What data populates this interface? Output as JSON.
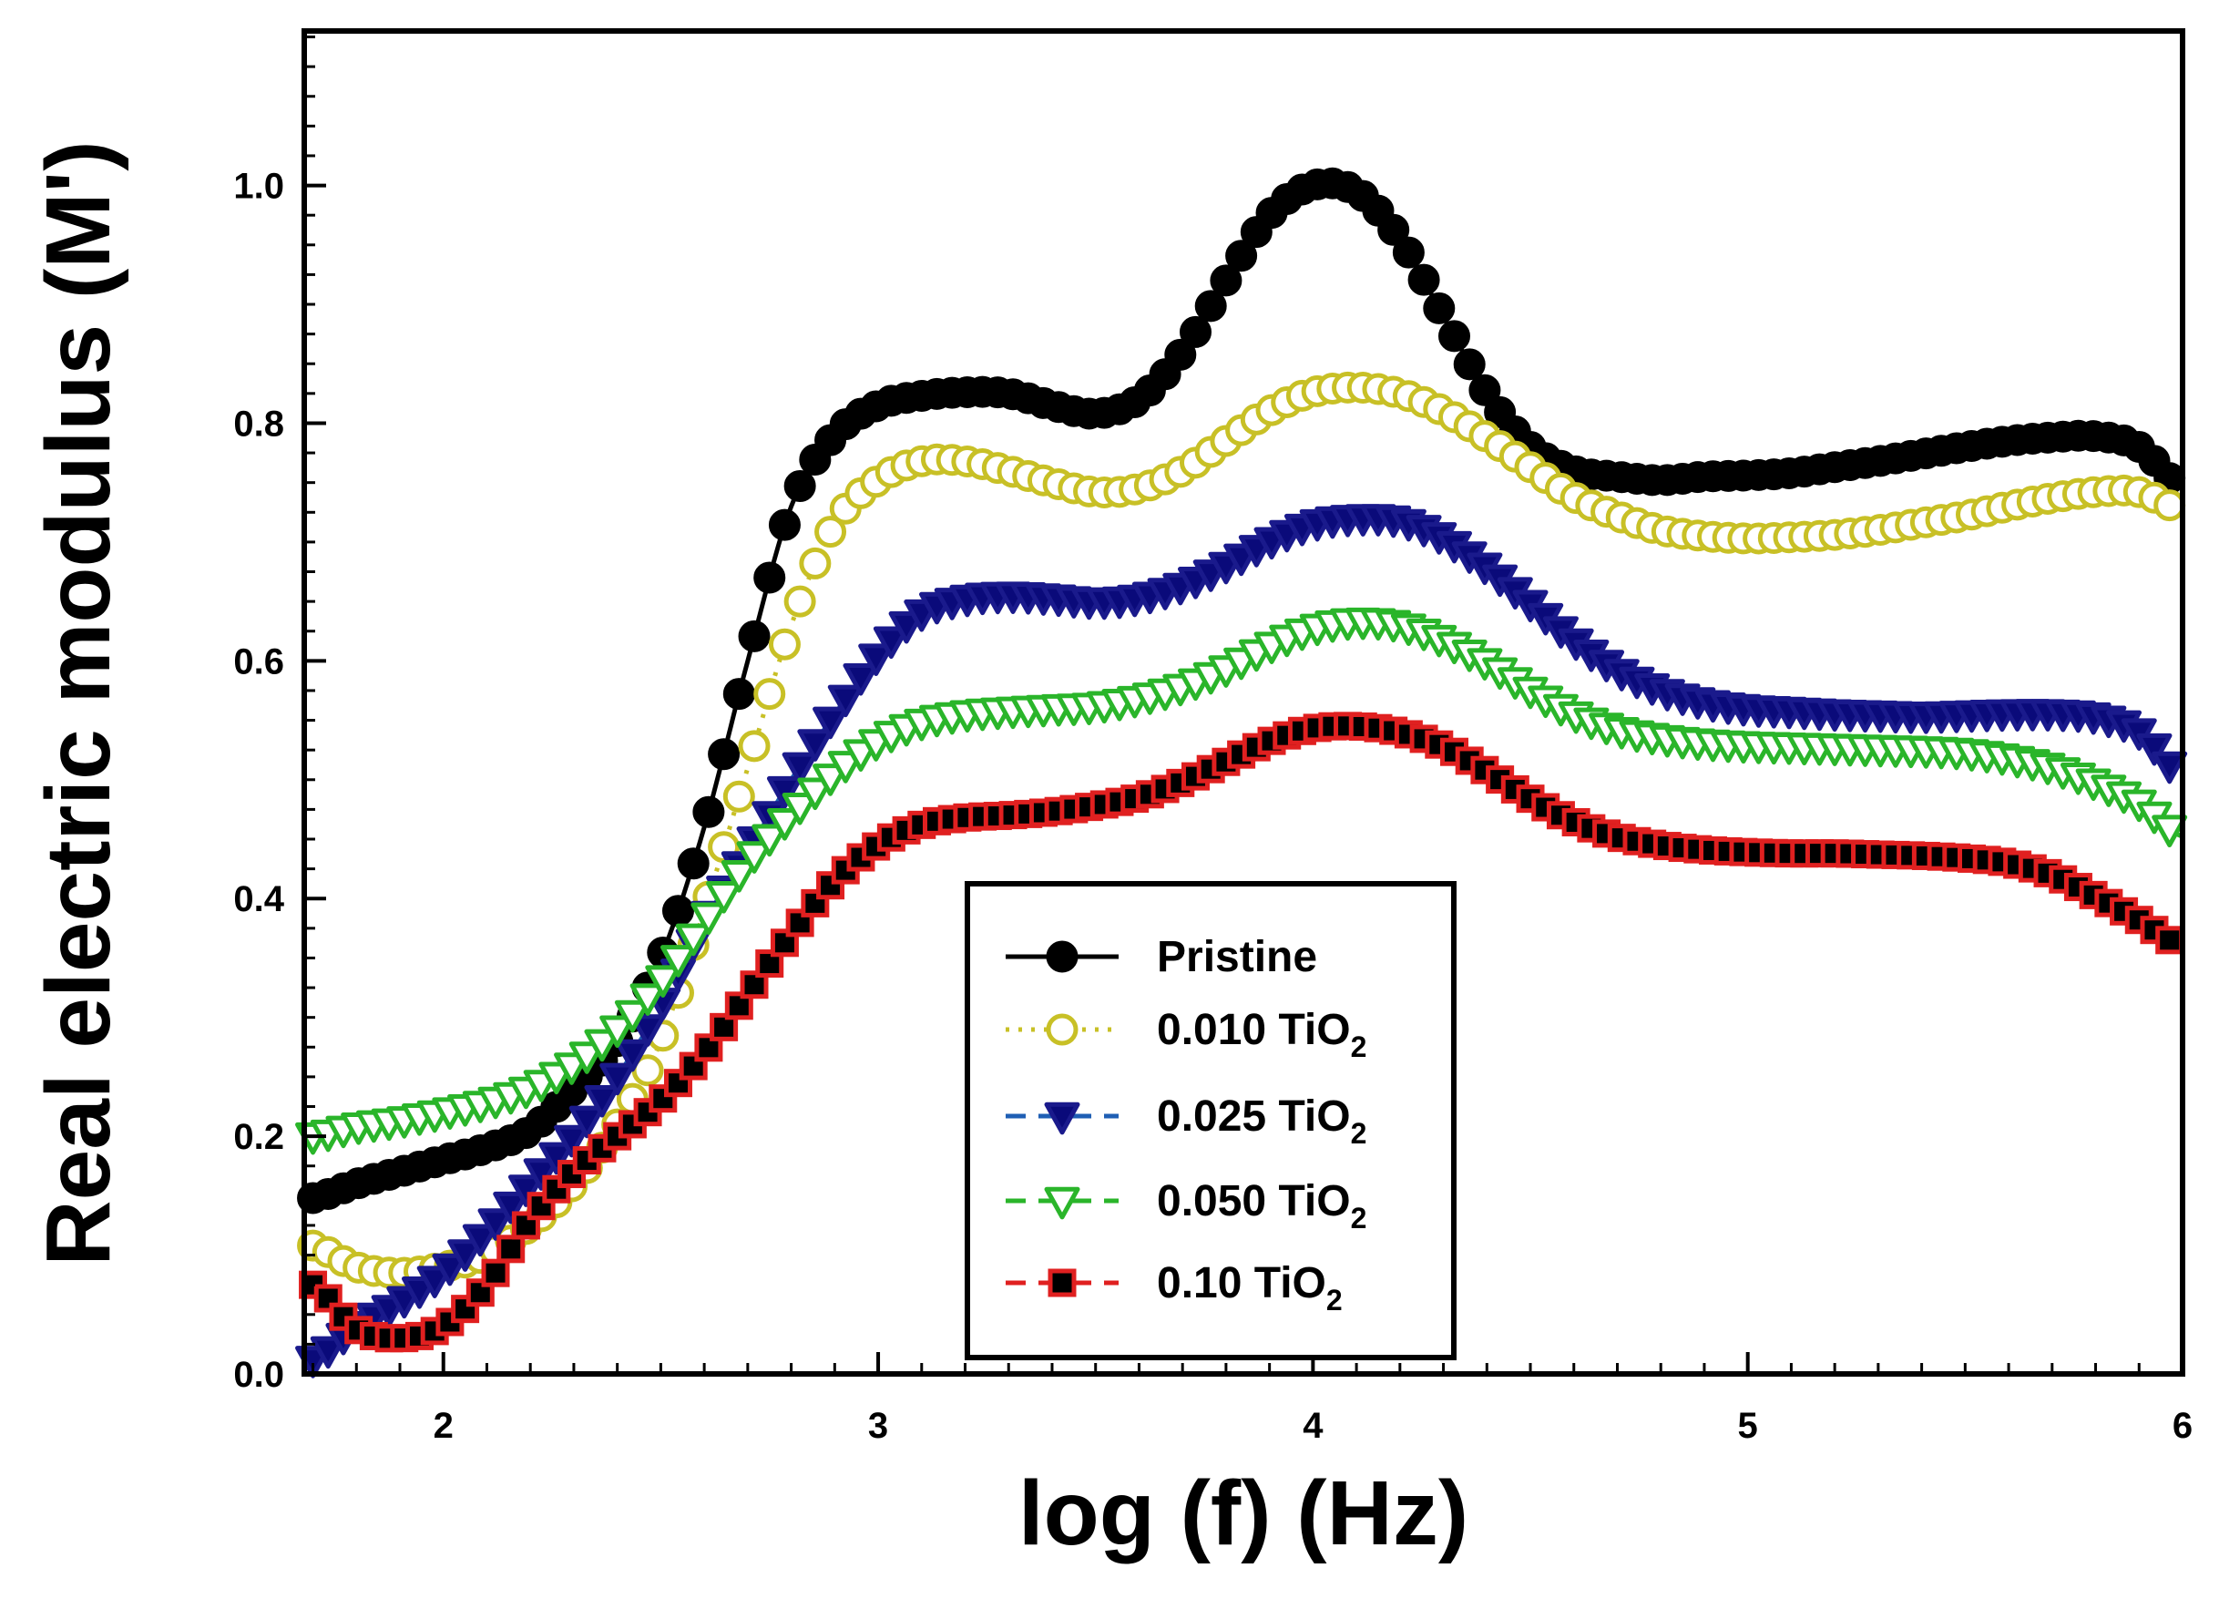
{
  "chart_data": {
    "type": "line",
    "xlabel": "log (f) (Hz)",
    "ylabel": "Real electric modulus (M')",
    "xlim": [
      1.68,
      6.0
    ],
    "ylim": [
      0.0,
      1.13
    ],
    "xticks": [
      2,
      3,
      4,
      5,
      6
    ],
    "xtick_labels": [
      "2",
      "3",
      "4",
      "5",
      "6"
    ],
    "yticks": [
      0.0,
      0.2,
      0.4,
      0.6,
      0.8,
      1.0
    ],
    "ytick_labels": [
      "0.0",
      "0.2",
      "0.4",
      "0.6",
      "0.8",
      "1.0"
    ],
    "legend_position": "bottom-center",
    "x_anchors": [
      1.7,
      1.8,
      1.9,
      2.0,
      2.1,
      2.2,
      2.3,
      2.4,
      2.5,
      2.6,
      2.7,
      2.8,
      2.9,
      3.0,
      3.1,
      3.2,
      3.3,
      3.4,
      3.5,
      3.6,
      3.7,
      3.8,
      3.9,
      4.0,
      4.1,
      4.2,
      4.3,
      4.4,
      4.5,
      4.6,
      4.7,
      4.8,
      4.9,
      5.0,
      5.1,
      5.2,
      5.3,
      5.4,
      5.5,
      5.6,
      5.7,
      5.8,
      5.9,
      6.0
    ],
    "marker_step": 0.035,
    "series": [
      {
        "name": "Pristine",
        "label_main": "Pristine",
        "label_sub": "",
        "marker": "filled-circle",
        "line_style": "solid",
        "color": "#000000",
        "marker_stroke": "#000000",
        "marker_fill": "#000000",
        "values": [
          0.148,
          0.16,
          0.17,
          0.18,
          0.19,
          0.205,
          0.24,
          0.28,
          0.35,
          0.46,
          0.6,
          0.73,
          0.79,
          0.815,
          0.823,
          0.826,
          0.825,
          0.815,
          0.808,
          0.82,
          0.86,
          0.92,
          0.975,
          1.0,
          0.995,
          0.955,
          0.89,
          0.825,
          0.78,
          0.76,
          0.755,
          0.752,
          0.755,
          0.756,
          0.758,
          0.763,
          0.768,
          0.774,
          0.78,
          0.785,
          0.788,
          0.789,
          0.78,
          0.745
        ]
      },
      {
        "name": "0.010 TiO2",
        "label_main": "0.010 TiO",
        "label_sub": "2",
        "marker": "open-circle",
        "line_style": "dotted",
        "color": "#c8c026",
        "marker_stroke": "#c8c026",
        "marker_fill": "#ffffff",
        "values": [
          0.108,
          0.09,
          0.085,
          0.09,
          0.1,
          0.125,
          0.16,
          0.21,
          0.28,
          0.39,
          0.51,
          0.63,
          0.715,
          0.752,
          0.768,
          0.768,
          0.76,
          0.75,
          0.742,
          0.745,
          0.76,
          0.785,
          0.81,
          0.826,
          0.83,
          0.825,
          0.81,
          0.788,
          0.763,
          0.738,
          0.722,
          0.71,
          0.705,
          0.703,
          0.704,
          0.706,
          0.71,
          0.716,
          0.722,
          0.73,
          0.737,
          0.742,
          0.742,
          0.727
        ]
      },
      {
        "name": "0.025 TiO2",
        "label_main": "0.025 TiO",
        "label_sub": "2",
        "marker": "filled-triangle-down",
        "line_style": "dashed",
        "color": "#1f5fb4",
        "marker_stroke": "#1a1a8c",
        "marker_fill": "#0a0a7a",
        "values": [
          0.012,
          0.04,
          0.06,
          0.085,
          0.12,
          0.16,
          0.2,
          0.25,
          0.31,
          0.38,
          0.44,
          0.5,
          0.555,
          0.605,
          0.64,
          0.652,
          0.655,
          0.653,
          0.65,
          0.653,
          0.663,
          0.68,
          0.7,
          0.715,
          0.72,
          0.718,
          0.703,
          0.678,
          0.648,
          0.617,
          0.592,
          0.575,
          0.565,
          0.56,
          0.558,
          0.556,
          0.555,
          0.554,
          0.555,
          0.556,
          0.556,
          0.553,
          0.54,
          0.503
        ]
      },
      {
        "name": "0.050 TiO2",
        "label_main": "0.050 TiO",
        "label_sub": "2",
        "marker": "open-triangle-down",
        "line_style": "dashed",
        "color": "#2ab52a",
        "marker_stroke": "#2ab52a",
        "marker_fill": "#ffffff",
        "values": [
          0.2,
          0.208,
          0.213,
          0.22,
          0.228,
          0.24,
          0.26,
          0.29,
          0.33,
          0.38,
          0.43,
          0.47,
          0.505,
          0.532,
          0.548,
          0.555,
          0.558,
          0.56,
          0.562,
          0.568,
          0.578,
          0.593,
          0.612,
          0.627,
          0.633,
          0.63,
          0.617,
          0.598,
          0.575,
          0.555,
          0.542,
          0.535,
          0.531,
          0.529,
          0.528,
          0.527,
          0.526,
          0.525,
          0.523,
          0.518,
          0.51,
          0.497,
          0.48,
          0.452
        ]
      },
      {
        "name": "0.10 TiO2",
        "label_main": "0.10 TiO",
        "label_sub": "2",
        "marker": "filled-square",
        "line_style": "dashed",
        "color": "#e02020",
        "marker_stroke": "#e02020",
        "marker_fill": "#000000",
        "values": [
          0.075,
          0.038,
          0.03,
          0.04,
          0.075,
          0.13,
          0.17,
          0.2,
          0.23,
          0.27,
          0.32,
          0.37,
          0.415,
          0.445,
          0.462,
          0.468,
          0.47,
          0.473,
          0.478,
          0.485,
          0.498,
          0.515,
          0.532,
          0.543,
          0.545,
          0.54,
          0.528,
          0.507,
          0.484,
          0.465,
          0.452,
          0.445,
          0.441,
          0.439,
          0.438,
          0.438,
          0.437,
          0.436,
          0.434,
          0.43,
          0.42,
          0.402,
          0.382,
          0.36
        ]
      }
    ]
  }
}
